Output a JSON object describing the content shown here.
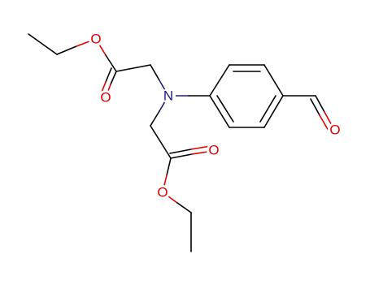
{
  "atoms": [
    "O",
    "O",
    "N",
    "O",
    "O",
    "O"
  ]
}
